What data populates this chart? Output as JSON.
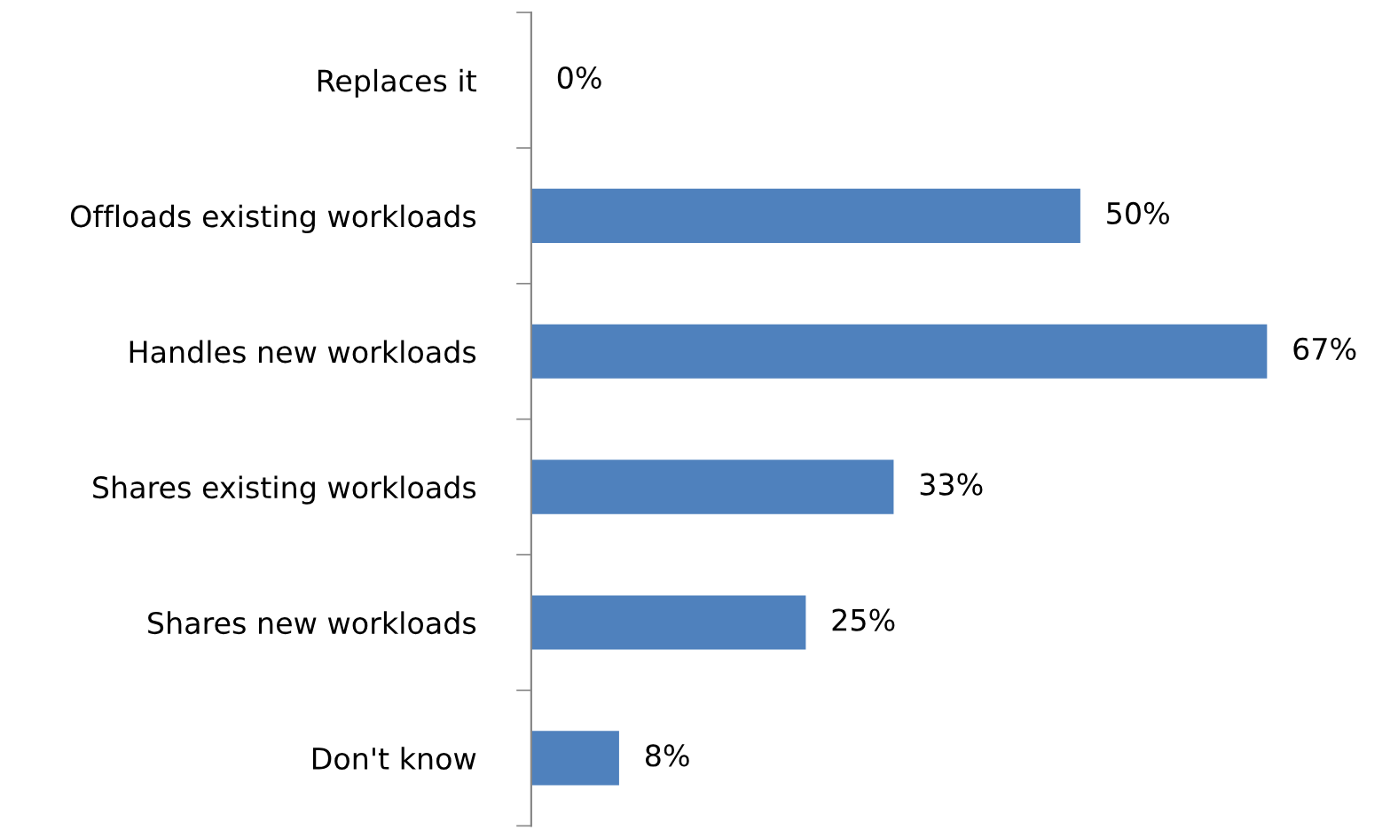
{
  "chart_data": {
    "type": "bar",
    "orientation": "horizontal",
    "categories": [
      "Replaces it",
      "Offloads existing workloads",
      "Handles new workloads",
      "Shares existing workloads",
      "Shares new workloads",
      "Don't know"
    ],
    "values": [
      0,
      50,
      67,
      33,
      25,
      8
    ],
    "value_labels": [
      "0%",
      "50%",
      "67%",
      "33%",
      "25%",
      "8%"
    ],
    "color": "#4f81bd",
    "tick_labels": "y"
  }
}
